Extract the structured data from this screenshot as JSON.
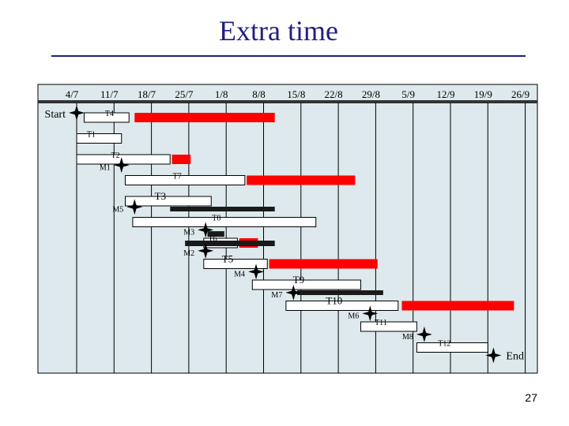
{
  "slide": {
    "title": "Extra time",
    "page_number": "27"
  },
  "colors": {
    "background": "#dde9ec",
    "grid": "#000000",
    "task_bar": "#ffffff",
    "extra_time": "#ff0000",
    "resource": "#1a1a1a",
    "title": "#1f1f80"
  },
  "timeline": {
    "date_labels": [
      "4/7",
      "11/7",
      "18/7",
      "25/7",
      "1/8",
      "8/8",
      "15/8",
      "22/8",
      "29/8",
      "5/9",
      "12/9",
      "19/9",
      "26/9"
    ],
    "start_label": "Start",
    "end_label": "End"
  },
  "tasks": [
    {
      "id": "T4",
      "label": "T4",
      "row": 0,
      "start": 0.2,
      "end": 1.4,
      "extra": [
        1.55,
        5.3
      ]
    },
    {
      "id": "T1",
      "label": "T1",
      "row": 1,
      "start": 0.0,
      "end": 1.2
    },
    {
      "id": "T2",
      "label": "T2",
      "row": 2,
      "start": 0.0,
      "end": 2.5,
      "extra": [
        2.55,
        3.05
      ]
    },
    {
      "id": "T7",
      "label": "T7",
      "row": 3,
      "start": 1.3,
      "end": 4.5,
      "extra": [
        4.55,
        7.45
      ]
    },
    {
      "id": "T3",
      "label": "T3",
      "row": 4,
      "start": 1.3,
      "end": 3.6,
      "resource": [
        2.5,
        5.3
      ]
    },
    {
      "id": "T8",
      "label": "T8",
      "row": 5,
      "start": 1.5,
      "end": 6.4
    },
    {
      "id": "T6",
      "label": "T6",
      "row": 6,
      "start": 3.4,
      "end": 4.3,
      "extra": [
        4.35,
        4.85
      ]
    },
    {
      "id": "T5",
      "label": "T5",
      "row": 7,
      "start": 3.4,
      "end": 5.1,
      "extra": [
        5.15,
        8.05
      ]
    },
    {
      "id": "T9",
      "label": "T9",
      "row": 8,
      "start": 4.7,
      "end": 7.6,
      "resource": [
        5.9,
        8.2
      ]
    },
    {
      "id": "T10",
      "label": "T10",
      "row": 9,
      "start": 5.6,
      "end": 8.6,
      "extra": [
        8.7,
        11.7
      ]
    },
    {
      "id": "T11",
      "label": "T11",
      "row": 10,
      "start": 7.6,
      "end": 9.1
    },
    {
      "id": "T12",
      "label": "T12",
      "row": 11,
      "start": 9.1,
      "end": 11.0
    }
  ],
  "resource_bars_extra": [
    {
      "row": 6,
      "span": [
        2.9,
        5.3
      ]
    },
    {
      "row": 5.55,
      "span": [
        3.5,
        3.95
      ]
    }
  ],
  "milestones": [
    {
      "id": "Start",
      "label": "Start",
      "x": 0.0,
      "row": 0
    },
    {
      "id": "M1",
      "label": "M1",
      "x": 1.2,
      "row": 2.5
    },
    {
      "id": "M5",
      "label": "M5",
      "x": 1.55,
      "row": 4.5
    },
    {
      "id": "M3",
      "label": "M3",
      "x": 3.45,
      "row": 5.6
    },
    {
      "id": "M2",
      "label": "M2",
      "x": 3.45,
      "row": 6.6
    },
    {
      "id": "M4",
      "label": "M4",
      "x": 4.8,
      "row": 7.6
    },
    {
      "id": "M7",
      "label": "M7",
      "x": 5.8,
      "row": 8.6
    },
    {
      "id": "M6",
      "label": "M6",
      "x": 7.85,
      "row": 9.6
    },
    {
      "id": "M8",
      "label": "M8",
      "x": 9.3,
      "row": 10.6
    },
    {
      "id": "End",
      "label": "End",
      "x": 11.15,
      "row": 11.6
    }
  ]
}
